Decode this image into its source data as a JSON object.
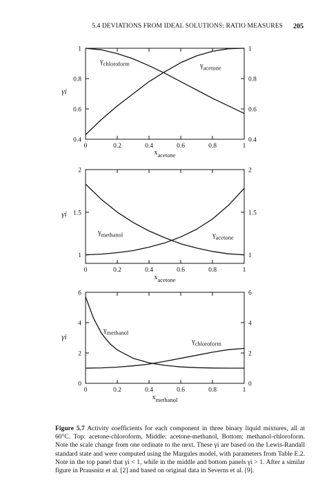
{
  "page": {
    "running_head": "5.4  DEVIATIONS FROM IDEAL SOLUTIONS: RATIO MEASURES",
    "page_number": "205"
  },
  "chart_data": [
    {
      "type": "line",
      "ylabel": "γi",
      "xlabel_main": "x",
      "xlabel_sub": "acetone",
      "xlim": [
        0,
        1
      ],
      "ylim": [
        0.4,
        1
      ],
      "xticks": [
        "0",
        "0.2",
        "0.4",
        "0.6",
        "0.8",
        "1"
      ],
      "yticks": [
        "0.4",
        "0.6",
        "0.8",
        "1"
      ],
      "yticks_right": [
        "0.4",
        "0.6",
        "0.8",
        "1"
      ],
      "series": [
        {
          "name_main": "γ",
          "name_sub": "chloroform",
          "x": [
            0,
            0.1,
            0.2,
            0.3,
            0.4,
            0.5,
            0.6,
            0.7,
            0.8,
            0.9,
            1
          ],
          "y": [
            1.0,
            0.99,
            0.965,
            0.93,
            0.885,
            0.835,
            0.78,
            0.725,
            0.67,
            0.62,
            0.57
          ]
        },
        {
          "name_main": "γ",
          "name_sub": "acetone",
          "x": [
            0,
            0.1,
            0.2,
            0.3,
            0.4,
            0.5,
            0.6,
            0.7,
            0.8,
            0.9,
            1
          ],
          "y": [
            0.43,
            0.53,
            0.62,
            0.7,
            0.78,
            0.845,
            0.905,
            0.95,
            0.98,
            0.997,
            1.0
          ]
        }
      ]
    },
    {
      "type": "line",
      "ylabel": "γi",
      "xlabel_main": "x",
      "xlabel_sub": "acetone",
      "xlim": [
        0,
        1
      ],
      "ylim": [
        0.9,
        2
      ],
      "xticks": [
        "0",
        "0.2",
        "0.4",
        "0.6",
        "0.8",
        "1"
      ],
      "yticks": [
        "1",
        "1.5",
        "2"
      ],
      "yticks_right": [
        "1",
        "1.5",
        "2"
      ],
      "series": [
        {
          "name_main": "γ",
          "name_sub": "methanol",
          "x": [
            0,
            0.1,
            0.2,
            0.3,
            0.4,
            0.5,
            0.6,
            0.7,
            0.8,
            0.9,
            1
          ],
          "y": [
            1.0,
            1.008,
            1.025,
            1.05,
            1.09,
            1.14,
            1.21,
            1.3,
            1.42,
            1.58,
            1.78
          ]
        },
        {
          "name_main": "γ",
          "name_sub": "acetone",
          "x": [
            0,
            0.1,
            0.2,
            0.3,
            0.4,
            0.5,
            0.6,
            0.7,
            0.8,
            0.9,
            1
          ],
          "y": [
            1.83,
            1.65,
            1.5,
            1.38,
            1.28,
            1.2,
            1.13,
            1.08,
            1.04,
            1.012,
            1.0
          ]
        }
      ]
    },
    {
      "type": "line",
      "ylabel": "γi",
      "xlabel_main": "x",
      "xlabel_sub": "methanol",
      "xlim": [
        0,
        1
      ],
      "ylim": [
        0,
        6
      ],
      "xticks": [
        "0",
        "0.2",
        "0.4",
        "0.6",
        "0.8",
        "1"
      ],
      "yticks": [
        "0",
        "2",
        "4",
        "6"
      ],
      "yticks_right": [
        "0",
        "2",
        "4",
        "6"
      ],
      "series": [
        {
          "name_main": "γ",
          "name_sub": "methanol",
          "x": [
            0,
            0.05,
            0.1,
            0.15,
            0.2,
            0.3,
            0.4,
            0.5,
            0.6,
            0.7,
            0.8,
            0.9,
            1
          ],
          "y": [
            5.7,
            4.3,
            3.3,
            2.65,
            2.2,
            1.65,
            1.35,
            1.18,
            1.08,
            1.03,
            1.01,
            1.0,
            1.0
          ]
        },
        {
          "name_main": "γ",
          "name_sub": "chloroform",
          "x": [
            0,
            0.1,
            0.2,
            0.3,
            0.4,
            0.5,
            0.6,
            0.7,
            0.8,
            0.9,
            1
          ],
          "y": [
            1.0,
            1.02,
            1.07,
            1.15,
            1.27,
            1.45,
            1.65,
            1.85,
            2.05,
            2.22,
            2.3
          ]
        }
      ]
    }
  ],
  "caption": {
    "label": "Figure 5.7",
    "text": "Activity coefficients for each component in three binary liquid mixtures, all at 60°C. Top: acetone-chloroform, Middle: acetone-methanol, Bottom: methanol-chloroform. Note the scale change from one ordinate to the next. These γi are based on the Lewis-Randall standard state and were computed using the Margules model, with parameters from Table E.2. Note in the top panel that γi < 1, while in the middle and bottom panels γi > 1. After a similar figure in Prausnitz et al. [2] and based on original data in Severns et al. [9]."
  }
}
